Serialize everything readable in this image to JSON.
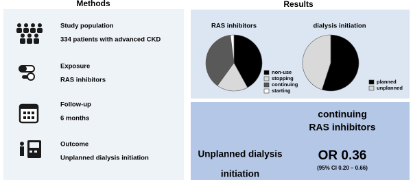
{
  "methods": {
    "title": "Methods",
    "items": [
      {
        "label": "Study population",
        "detail": "334 patients with advanced CKD"
      },
      {
        "label": "Exposure",
        "detail": "RAS inhibitors"
      },
      {
        "label": "Follow-up",
        "detail": "6 months"
      },
      {
        "label": "Outcome",
        "detail": "Unplanned dialysis initiation"
      }
    ]
  },
  "results": {
    "title": "Results",
    "exposure_label": [
      "continuing",
      "RAS inhibitors"
    ],
    "outcome_label": [
      "Unplanned dialysis",
      "initiation"
    ],
    "estimate": "OR 0.36",
    "ci": "(95% CI 0.20 – 0.66)"
  },
  "chart_data": [
    {
      "type": "pie",
      "title": "RAS inhibitors",
      "categories": [
        "non-use",
        "stopping",
        "continuing",
        "starting"
      ],
      "values": [
        42,
        18,
        38,
        2
      ],
      "colors": [
        "#000000",
        "#d9d9d9",
        "#595959",
        "#ffffff"
      ]
    },
    {
      "type": "pie",
      "title": "dialysis  initiation",
      "categories": [
        "planned",
        "unplanned"
      ],
      "values": [
        55,
        45
      ],
      "colors": [
        "#000000",
        "#d9d9d9"
      ]
    }
  ]
}
